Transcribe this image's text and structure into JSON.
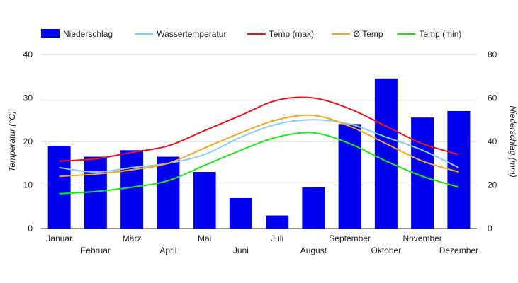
{
  "chart_data": {
    "type": "bar+line",
    "categories": [
      "Januar",
      "Februar",
      "März",
      "April",
      "Mai",
      "Juni",
      "Juli",
      "August",
      "September",
      "Oktober",
      "November",
      "Dezember"
    ],
    "y_left": {
      "label": "Temperatur (°C)",
      "range": [
        0,
        40
      ],
      "ticks": [
        0,
        10,
        20,
        30,
        40
      ]
    },
    "y_right": {
      "label": "Niederschlag (mm)",
      "range": [
        0,
        80
      ],
      "ticks": [
        0,
        20,
        40,
        60,
        80
      ]
    },
    "grid": true,
    "legend_position": "top",
    "series": [
      {
        "name": "Niederschlag",
        "kind": "bar",
        "axis": "right",
        "color": "#0000ee",
        "values": [
          38,
          33,
          36,
          33,
          26,
          14,
          6,
          19,
          48,
          69,
          51,
          54
        ]
      },
      {
        "name": "Wassertemperatur",
        "kind": "line",
        "axis": "left",
        "color": "#87cefa",
        "values": [
          14,
          13,
          14,
          15,
          17,
          21,
          24,
          25,
          24,
          21,
          18,
          14
        ]
      },
      {
        "name": "Temp (max)",
        "kind": "line",
        "axis": "left",
        "color": "#e8141e",
        "values": [
          15.5,
          16,
          17.5,
          19,
          22.5,
          26,
          29.5,
          30,
          27.5,
          23.5,
          19.5,
          17
        ]
      },
      {
        "name": "Ø Temp",
        "kind": "line",
        "axis": "left",
        "color": "#f5a623",
        "values": [
          12,
          12.5,
          13.5,
          15,
          18.5,
          22,
          25,
          26,
          23.5,
          19.5,
          15.5,
          13
        ]
      },
      {
        "name": "Temp (min)",
        "kind": "line",
        "axis": "left",
        "color": "#1ee61e",
        "values": [
          8,
          8.5,
          9.5,
          11,
          14.5,
          18,
          21,
          22,
          19.5,
          15.5,
          12,
          9.5
        ]
      }
    ]
  }
}
